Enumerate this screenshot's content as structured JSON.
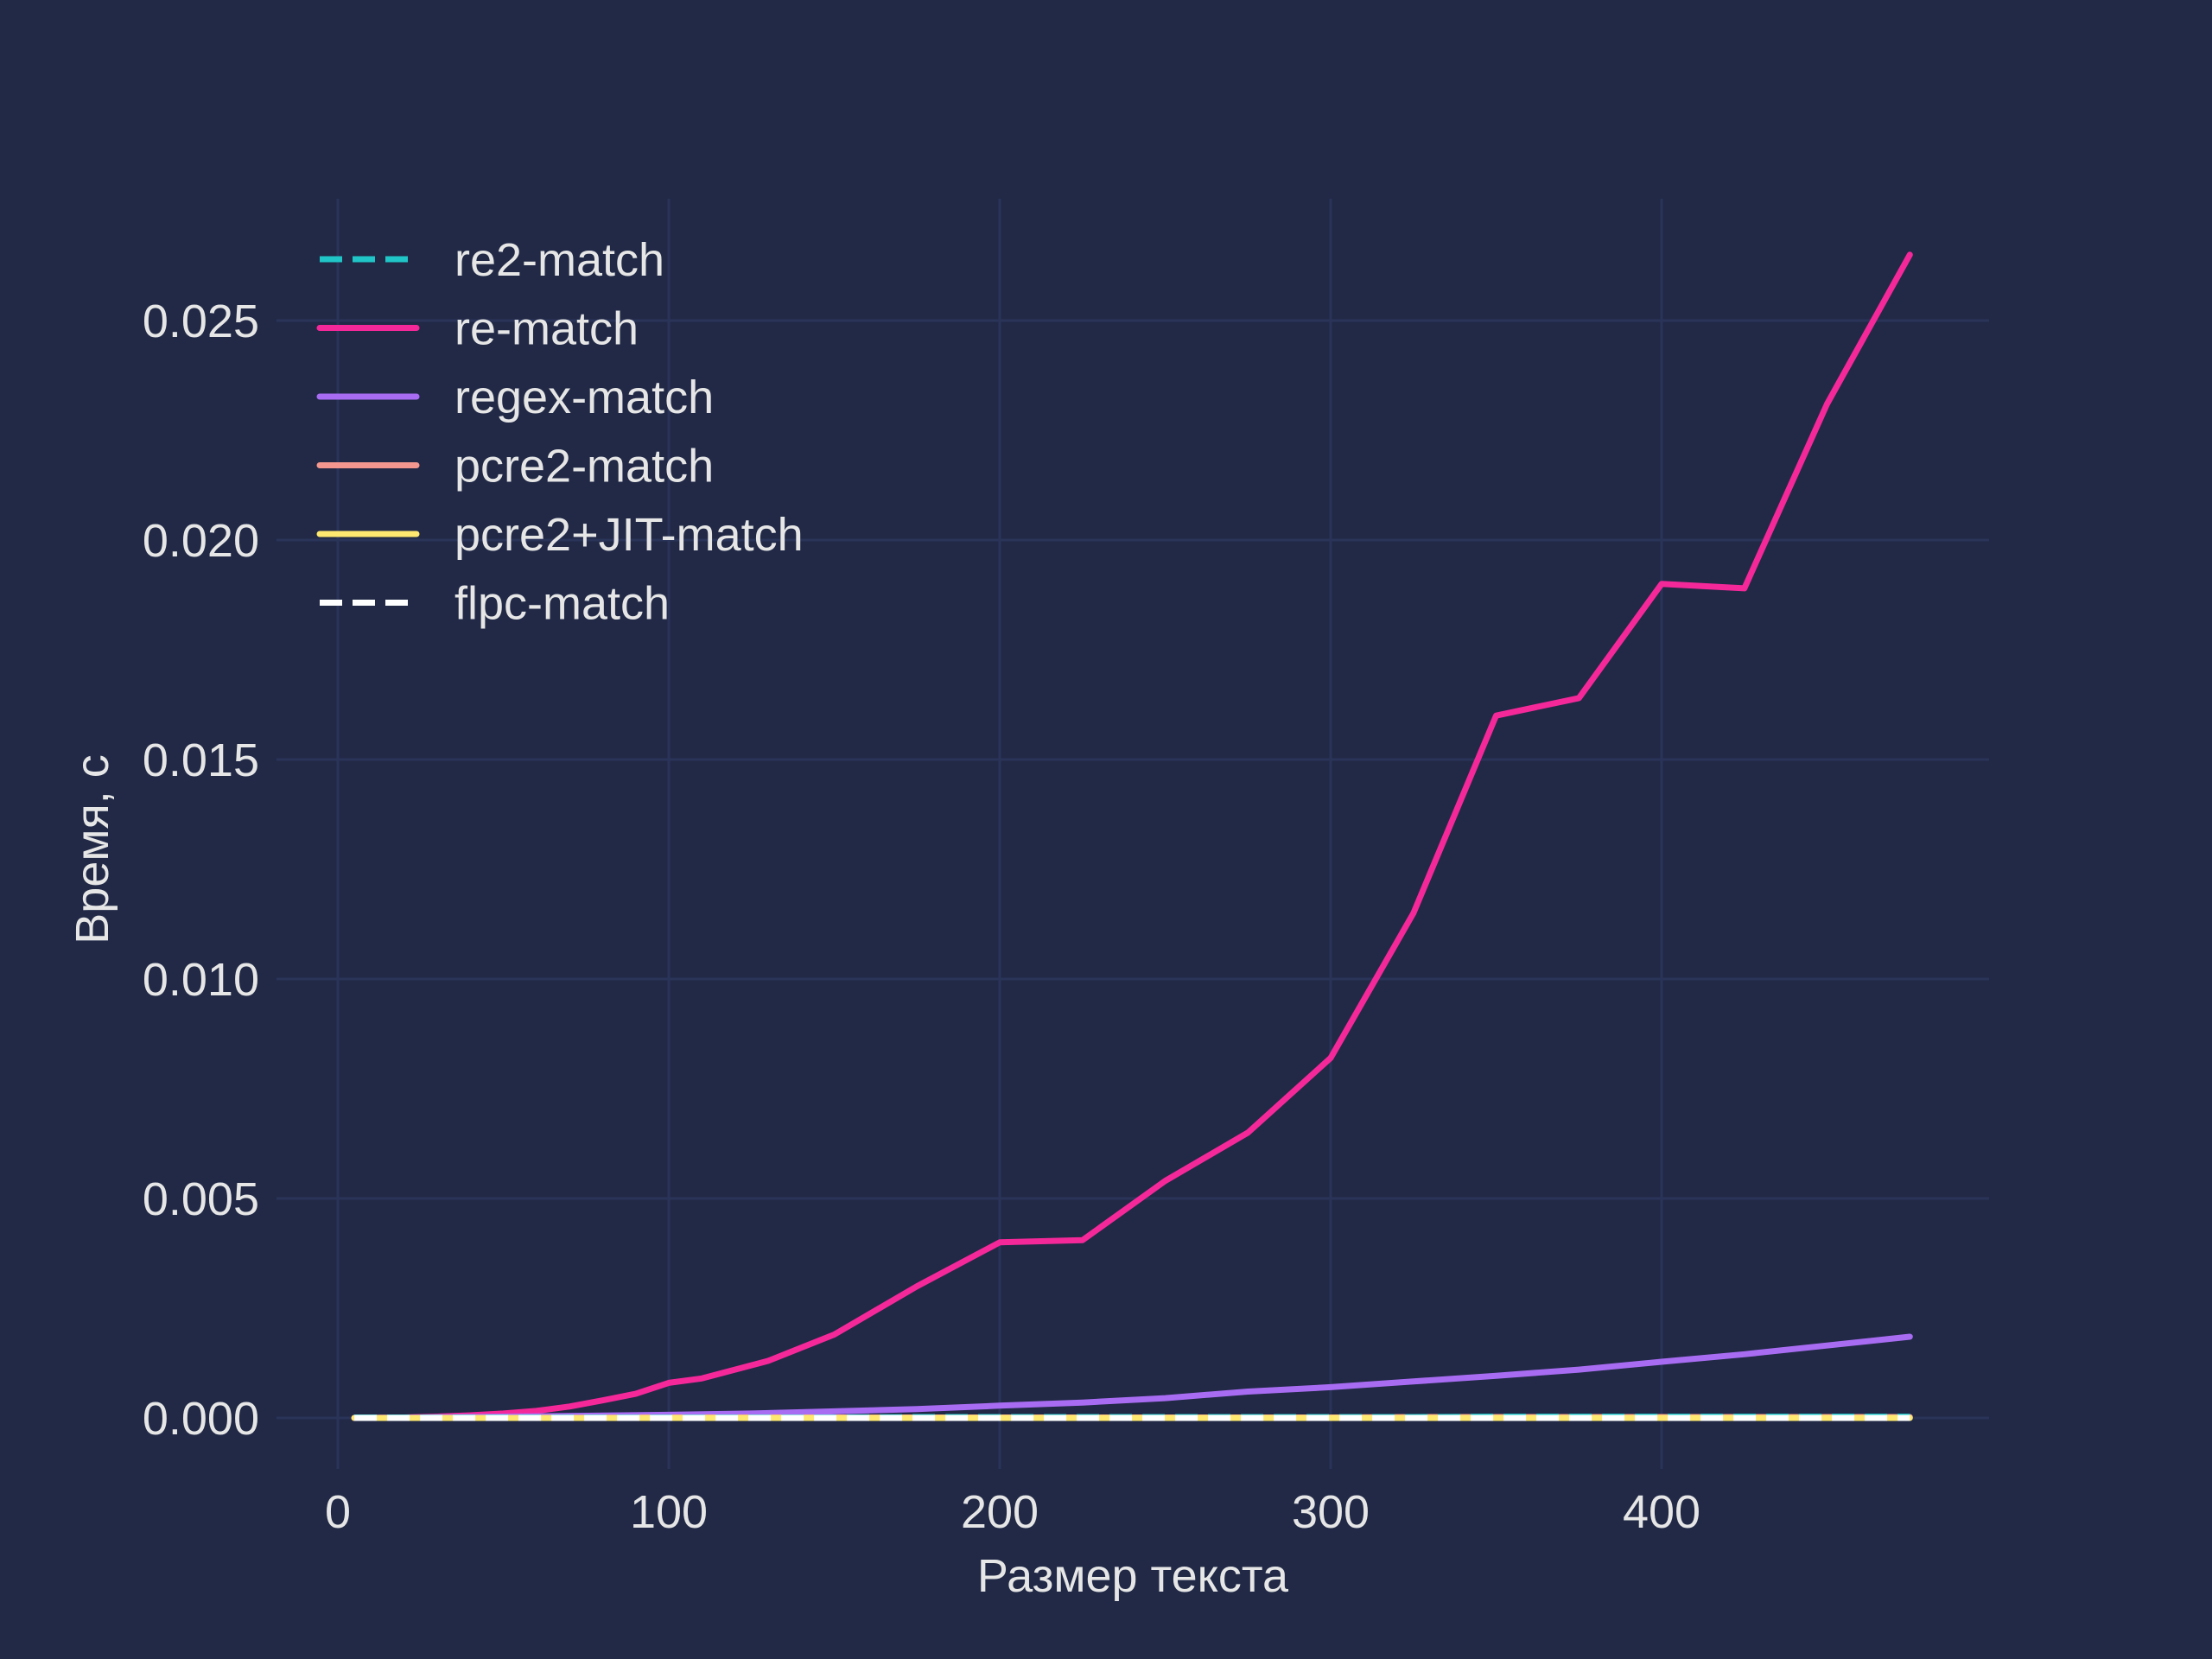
{
  "colors": {
    "background": "#212946",
    "grid": "#2a3459",
    "text": "#e6e6e6"
  },
  "chart_data": {
    "type": "line",
    "title": "",
    "xlabel": "Размер текста",
    "ylabel": "Время, с",
    "xlim": [
      -20,
      500
    ],
    "ylim": [
      -0.0011,
      0.0278
    ],
    "x_ticks": [
      0,
      100,
      200,
      300,
      400
    ],
    "x_tick_labels": [
      "0",
      "100",
      "200",
      "300",
      "400"
    ],
    "y_ticks": [
      0.0,
      0.005,
      0.01,
      0.015,
      0.02,
      0.025
    ],
    "y_tick_labels": [
      "0.000",
      "0.005",
      "0.010",
      "0.015",
      "0.020",
      "0.025"
    ],
    "grid": true,
    "legend_position": "top-left",
    "series": [
      {
        "name": "re2-match",
        "color": "#20c5c7",
        "dash": "dashed",
        "x": [
          5,
          25,
          50,
          75,
          100,
          125,
          150,
          175,
          200,
          225,
          250,
          275,
          300,
          325,
          350,
          375,
          400,
          425,
          450,
          475
        ],
        "y": [
          1e-05,
          1e-05,
          1e-05,
          1e-05,
          1e-05,
          1e-05,
          1e-05,
          2e-05,
          2e-05,
          2e-05,
          2e-05,
          2e-05,
          2e-05,
          2e-05,
          3e-05,
          3e-05,
          3e-05,
          3e-05,
          3e-05,
          3e-05
        ]
      },
      {
        "name": "re-match",
        "color": "#f5289a",
        "dash": "solid",
        "x": [
          5,
          10,
          20,
          30,
          40,
          50,
          60,
          70,
          80,
          90,
          100,
          110,
          120,
          130,
          140,
          150,
          175,
          200,
          225,
          250,
          275,
          300,
          325,
          350,
          375,
          400,
          425,
          450,
          475
        ],
        "y": [
          0.0,
          0.0,
          1e-05,
          3e-05,
          6e-05,
          0.0001,
          0.00016,
          0.00026,
          0.0004,
          0.00055,
          0.0008,
          0.0009,
          0.0011,
          0.0013,
          0.0016,
          0.0019,
          0.003,
          0.004,
          0.00405,
          0.0054,
          0.0065,
          0.0082,
          0.0115,
          0.016,
          0.0164,
          0.019,
          0.0189,
          0.0231,
          0.0265
        ]
      },
      {
        "name": "regex-match",
        "color": "#a86cf3",
        "dash": "solid",
        "x": [
          5,
          25,
          50,
          75,
          100,
          125,
          150,
          175,
          200,
          225,
          250,
          275,
          300,
          325,
          350,
          375,
          400,
          425,
          450,
          475
        ],
        "y": [
          0.0,
          1e-05,
          3e-05,
          5e-05,
          7e-05,
          0.0001,
          0.00015,
          0.0002,
          0.00028,
          0.00035,
          0.00045,
          0.0006,
          0.0007,
          0.00083,
          0.00096,
          0.0011,
          0.00128,
          0.00145,
          0.00165,
          0.00185
        ]
      },
      {
        "name": "pcre2-match",
        "color": "#f4978e",
        "dash": "solid",
        "x": [
          5,
          25,
          50,
          75,
          100,
          125,
          150,
          175,
          200,
          225,
          250,
          275,
          300,
          325,
          350,
          375,
          400,
          425,
          450,
          475
        ],
        "y": [
          0.0,
          0.0,
          0.0,
          0.0,
          1e-05,
          1e-05,
          1e-05,
          1e-05,
          1e-05,
          1e-05,
          1e-05,
          1e-05,
          1e-05,
          2e-05,
          2e-05,
          2e-05,
          2e-05,
          2e-05,
          2e-05,
          2e-05
        ]
      },
      {
        "name": "pcre2+JIT-match",
        "color": "#fee86f",
        "dash": "solid",
        "x": [
          5,
          25,
          50,
          75,
          100,
          125,
          150,
          175,
          200,
          225,
          250,
          275,
          300,
          325,
          350,
          375,
          400,
          425,
          450,
          475
        ],
        "y": [
          0.0,
          0.0,
          0.0,
          0.0,
          0.0,
          0.0,
          0.0,
          0.0,
          0.0,
          0.0,
          0.0,
          0.0,
          0.0,
          0.0,
          0.0,
          0.0,
          0.0,
          0.0,
          0.0,
          0.0
        ]
      },
      {
        "name": "flpc-match",
        "color": "#ffffff",
        "dash": "dashed",
        "x": [
          5,
          25,
          50,
          75,
          100,
          125,
          150,
          175,
          200,
          225,
          250,
          275,
          300,
          325,
          350,
          375,
          400,
          425,
          450,
          475
        ],
        "y": [
          0.0,
          0.0,
          0.0,
          0.0,
          0.0,
          0.0,
          0.0,
          0.0,
          0.0,
          0.0,
          0.0,
          0.0,
          0.0,
          0.0,
          0.0,
          0.0,
          0.0,
          0.0,
          0.0,
          0.0
        ]
      }
    ]
  }
}
